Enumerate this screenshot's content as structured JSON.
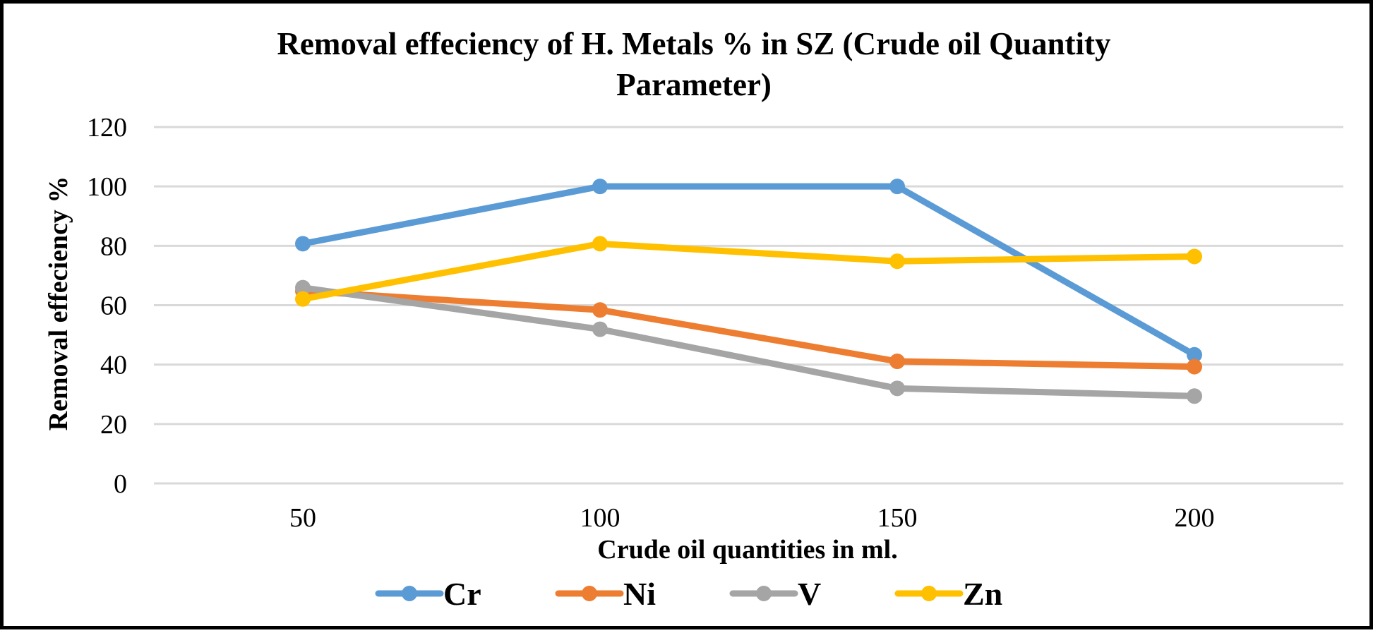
{
  "chart_data": {
    "type": "line",
    "title_lines": [
      "Removal effeciency of H. Metals % in SZ (Crude oil Quantity",
      "Parameter)"
    ],
    "xlabel": "Crude oil quantities in ml.",
    "ylabel": "Removal effeciency %",
    "categories": [
      "50",
      "100",
      "150",
      "200"
    ],
    "ylim": [
      0,
      120
    ],
    "y_ticks": [
      "0",
      "20",
      "40",
      "60",
      "80",
      "100",
      "120"
    ],
    "grid": true,
    "legend_position": "bottom",
    "series": [
      {
        "name": "Cr",
        "color": "#5B9BD5",
        "values": [
          80.7,
          100,
          100,
          43.3
        ]
      },
      {
        "name": "Ni",
        "color": "#ED7D31",
        "values": [
          64.8,
          58.4,
          41.1,
          39.3
        ]
      },
      {
        "name": "V",
        "color": "#A5A5A5",
        "values": [
          65.9,
          51.9,
          32.0,
          29.4
        ]
      },
      {
        "name": "Zn",
        "color": "#FFC000",
        "values": [
          62.1,
          80.7,
          74.8,
          76.4
        ]
      }
    ]
  }
}
